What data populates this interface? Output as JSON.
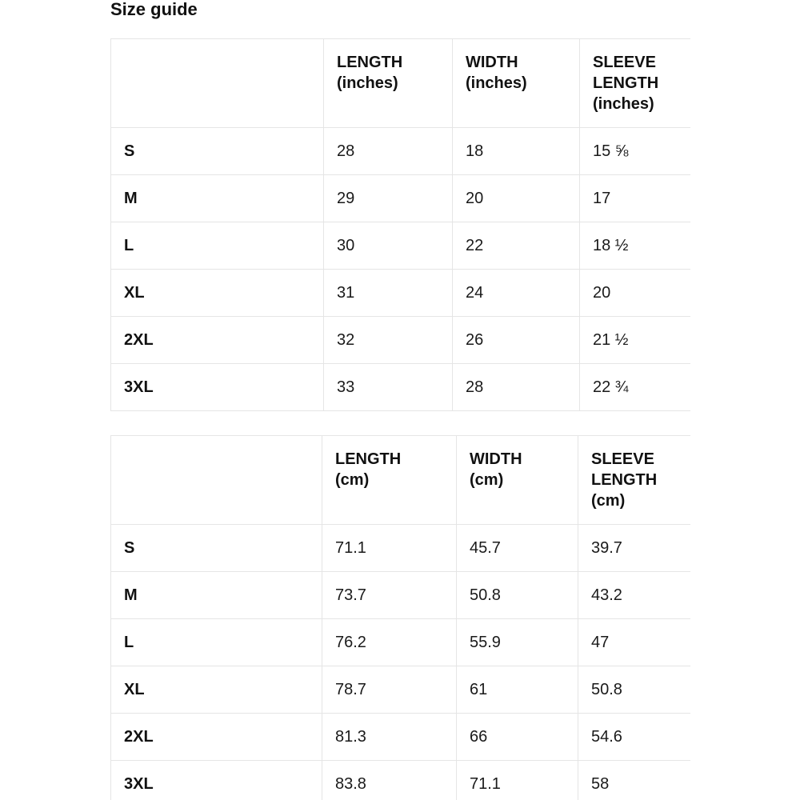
{
  "page": {
    "title": "Size guide"
  },
  "colors": {
    "background": "#ffffff",
    "text": "#1a1a1a",
    "heading_text": "#111111",
    "table_border": "#e5e5e5"
  },
  "tables": [
    {
      "id": "inches",
      "unit": "inches",
      "headers": [
        "",
        "LENGTH\n(inches)",
        "WIDTH\n(inches)",
        "SLEEVE\nLENGTH\n(inches)"
      ],
      "rows": [
        {
          "size": "S",
          "values": [
            "28",
            "18",
            "15 ⅝"
          ]
        },
        {
          "size": "M",
          "values": [
            "29",
            "20",
            "17"
          ]
        },
        {
          "size": "L",
          "values": [
            "30",
            "22",
            "18 ½"
          ]
        },
        {
          "size": "XL",
          "values": [
            "31",
            "24",
            "20"
          ]
        },
        {
          "size": "2XL",
          "values": [
            "32",
            "26",
            "21 ½"
          ]
        },
        {
          "size": "3XL",
          "values": [
            "33",
            "28",
            "22 ¾"
          ]
        }
      ]
    },
    {
      "id": "cm",
      "unit": "cm",
      "headers": [
        "",
        "LENGTH\n(cm)",
        "WIDTH\n(cm)",
        "SLEEVE\nLENGTH\n(cm)"
      ],
      "rows": [
        {
          "size": "S",
          "values": [
            "71.1",
            "45.7",
            "39.7"
          ]
        },
        {
          "size": "M",
          "values": [
            "73.7",
            "50.8",
            "43.2"
          ]
        },
        {
          "size": "L",
          "values": [
            "76.2",
            "55.9",
            "47"
          ]
        },
        {
          "size": "XL",
          "values": [
            "78.7",
            "61",
            "50.8"
          ]
        },
        {
          "size": "2XL",
          "values": [
            "81.3",
            "66",
            "54.6"
          ]
        },
        {
          "size": "3XL",
          "values": [
            "83.8",
            "71.1",
            "58"
          ]
        }
      ]
    }
  ]
}
